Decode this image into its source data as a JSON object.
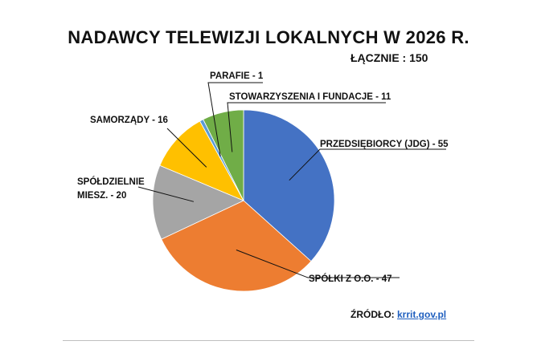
{
  "chart_data": {
    "type": "pie",
    "title": "NADAWCY TELEWIZJI LOKALNYCH W 2026 R.",
    "subtitle": "ŁĄCZNIE : 150",
    "slices": [
      {
        "label": "PRZEDSIĘBIORCY (JDG) - 55",
        "category": "PRZEDSIĘBIORCY (JDG)",
        "value": 55,
        "color": "#4472c4"
      },
      {
        "label": "SPÓŁKI Z O.O. - 47",
        "category": "SPÓŁKI Z O.O.",
        "value": 47,
        "color": "#ed7d31"
      },
      {
        "label_lines": [
          "SPÓŁDZIELNIE",
          "MIESZ. - 20"
        ],
        "category": "SPÓŁDZIELNIE MIESZ.",
        "value": 20,
        "color": "#a5a5a5"
      },
      {
        "label": "SAMORZĄDY - 16",
        "category": "SAMORZĄDY",
        "value": 16,
        "color": "#ffc000"
      },
      {
        "label": "PARAFIE - 1",
        "category": "PARAFIE",
        "value": 1,
        "color": "#5b9bd5"
      },
      {
        "label": "STOWARZYSZENIA I FUNDACJE - 11",
        "category": "STOWARZYSZENIA I FUNDACJE",
        "value": 11,
        "color": "#70ad47"
      }
    ]
  },
  "source": {
    "prefix": "ŹRÓDŁO: ",
    "link_text": "krrit.gov.pl"
  }
}
